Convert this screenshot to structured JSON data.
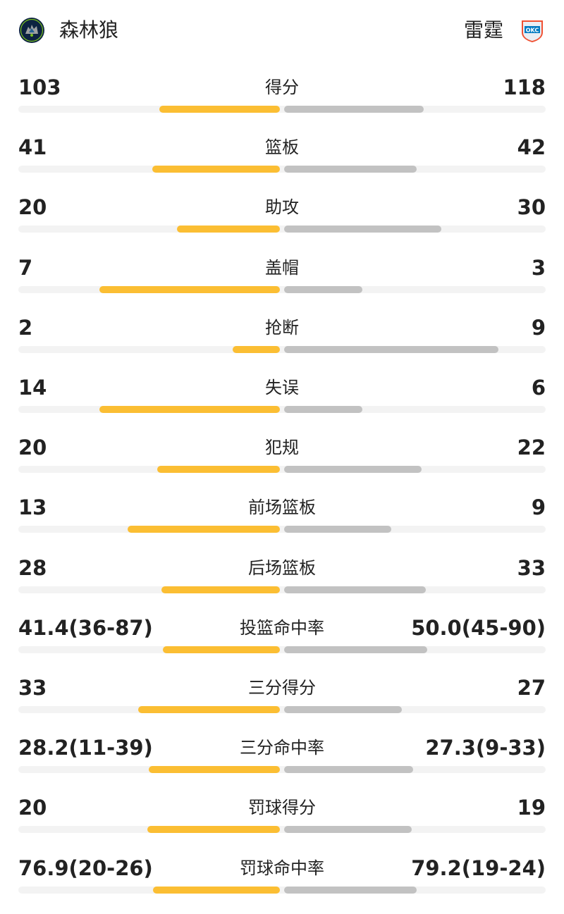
{
  "header": {
    "home_team": "森林狼",
    "away_team": "雷霆",
    "home_logo_icon": "timberwolves-logo-icon",
    "away_logo_icon": "thunder-logo-icon",
    "away_logo_text": "OKC"
  },
  "colors": {
    "home_bar": "#fbbe33",
    "away_bar": "#c2c2c2",
    "track": "#f3f3f3"
  },
  "stats": [
    {
      "label": "得分",
      "home": "103",
      "away": "118",
      "home_share": 0.466,
      "away_share": 0.534
    },
    {
      "label": "篮板",
      "home": "41",
      "away": "42",
      "home_share": 0.494,
      "away_share": 0.506
    },
    {
      "label": "助攻",
      "home": "20",
      "away": "30",
      "home_share": 0.4,
      "away_share": 0.6
    },
    {
      "label": "盖帽",
      "home": "7",
      "away": "3",
      "home_share": 0.7,
      "away_share": 0.3
    },
    {
      "label": "抢断",
      "home": "2",
      "away": "9",
      "home_share": 0.182,
      "away_share": 0.818
    },
    {
      "label": "失误",
      "home": "14",
      "away": "6",
      "home_share": 0.7,
      "away_share": 0.3
    },
    {
      "label": "犯规",
      "home": "20",
      "away": "22",
      "home_share": 0.476,
      "away_share": 0.524
    },
    {
      "label": "前场篮板",
      "home": "13",
      "away": "9",
      "home_share": 0.591,
      "away_share": 0.409
    },
    {
      "label": "后场篮板",
      "home": "28",
      "away": "33",
      "home_share": 0.459,
      "away_share": 0.541
    },
    {
      "label": "投篮命中率",
      "home": "41.4(36-87)",
      "away": "50.0(45-90)",
      "home_share": 0.453,
      "away_share": 0.547
    },
    {
      "label": "三分得分",
      "home": "33",
      "away": "27",
      "home_share": 0.55,
      "away_share": 0.45
    },
    {
      "label": "三分命中率",
      "home": "28.2(11-39)",
      "away": "27.3(9-33)",
      "home_share": 0.508,
      "away_share": 0.492
    },
    {
      "label": "罚球得分",
      "home": "20",
      "away": "19",
      "home_share": 0.513,
      "away_share": 0.487
    },
    {
      "label": "罚球命中率",
      "home": "76.9(20-26)",
      "away": "79.2(19-24)",
      "home_share": 0.493,
      "away_share": 0.507
    }
  ]
}
